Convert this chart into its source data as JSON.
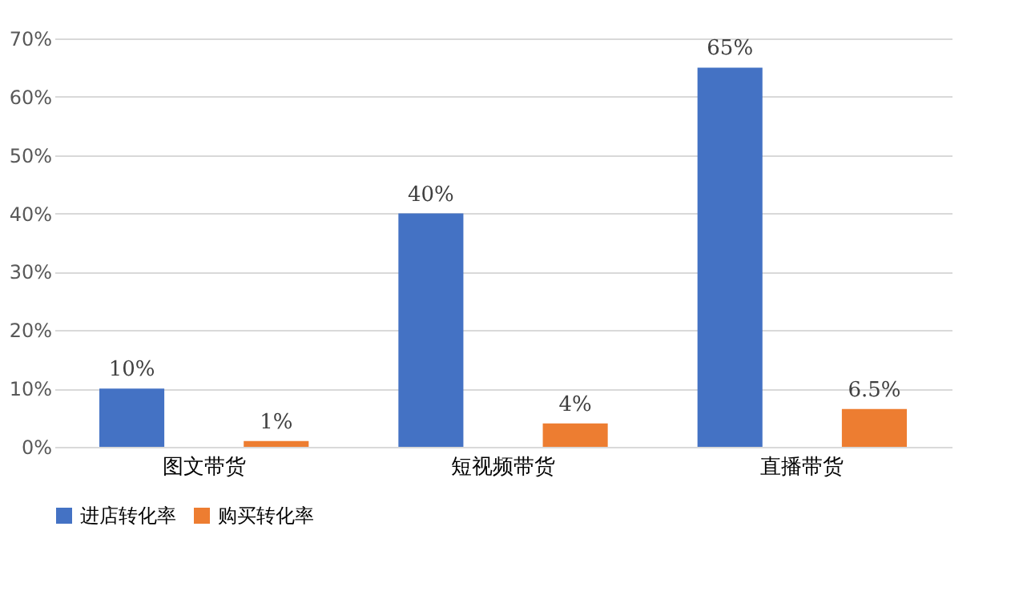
{
  "chart_data": {
    "type": "bar",
    "categories": [
      "图文带货",
      "短视频带货",
      "直播带货"
    ],
    "series": [
      {
        "name": "进店转化率",
        "color": "#4472c4",
        "values": [
          10,
          40,
          65
        ],
        "value_labels": [
          "10%",
          "40%",
          "65%"
        ]
      },
      {
        "name": "购买转化率",
        "color": "#ed7d31",
        "values": [
          1,
          4,
          6.5
        ],
        "value_labels": [
          "1%",
          "4%",
          "6.5%"
        ]
      }
    ],
    "ylim": [
      0,
      70
    ],
    "yticks": [
      {
        "value": 0,
        "label": "0%"
      },
      {
        "value": 10,
        "label": "10%"
      },
      {
        "value": 20,
        "label": "20%"
      },
      {
        "value": 30,
        "label": "30%"
      },
      {
        "value": 40,
        "label": "40%"
      },
      {
        "value": 50,
        "label": "50%"
      },
      {
        "value": 60,
        "label": "60%"
      },
      {
        "value": 70,
        "label": "70%"
      }
    ],
    "grid": "y",
    "legend": "bottom"
  }
}
